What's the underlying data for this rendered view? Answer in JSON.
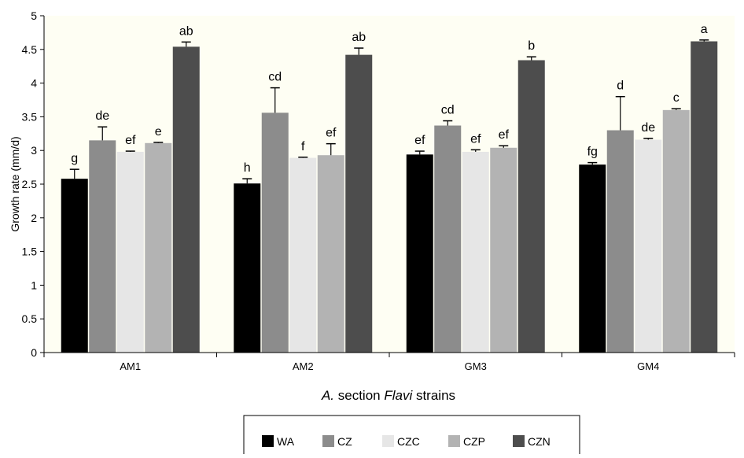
{
  "chart_data": {
    "type": "bar",
    "title": "",
    "ylabel": "Growth rate (mm/d)",
    "xlabel_parts": [
      {
        "text": "A.",
        "italic": true
      },
      {
        "text": " section ",
        "italic": false
      },
      {
        "text": "Flavi",
        "italic": true
      },
      {
        "text": " strains",
        "italic": false
      }
    ],
    "categories": [
      "AM1",
      "AM2",
      "GM3",
      "GM4"
    ],
    "ylim": [
      0,
      5
    ],
    "yticks": [
      0,
      0.5,
      1,
      1.5,
      2,
      2.5,
      3,
      3.5,
      4,
      4.5,
      5
    ],
    "ytick_labels": [
      "0",
      "0.5",
      "1",
      "1.5",
      "2",
      "2.5",
      "3",
      "3.5",
      "4",
      "4.5",
      "5"
    ],
    "grid": false,
    "legend_position": "bottom-center",
    "plot_background": "#fefef3",
    "series": [
      {
        "name": "WA",
        "color": "#000000",
        "values": [
          2.58,
          2.51,
          2.94,
          2.79
        ],
        "errors": [
          0.14,
          0.07,
          0.05,
          0.03
        ],
        "labels": [
          "g",
          "h",
          "ef",
          "fg"
        ]
      },
      {
        "name": "CZ",
        "color": "#8c8c8c",
        "values": [
          3.15,
          3.56,
          3.37,
          3.3
        ],
        "errors": [
          0.2,
          0.37,
          0.07,
          0.5
        ],
        "labels": [
          "de",
          "cd",
          "cd",
          "d"
        ]
      },
      {
        "name": "CZC",
        "color": "#e6e6e6",
        "values": [
          2.98,
          2.89,
          2.98,
          3.16
        ],
        "errors": [
          0.01,
          0.01,
          0.03,
          0.02
        ],
        "labels": [
          "ef",
          "f",
          "ef",
          "de"
        ]
      },
      {
        "name": "CZP",
        "color": "#b3b3b3",
        "values": [
          3.11,
          2.93,
          3.04,
          3.6
        ],
        "errors": [
          0.01,
          0.17,
          0.03,
          0.02
        ],
        "labels": [
          "e",
          "ef",
          "ef",
          "c"
        ]
      },
      {
        "name": "CZN",
        "color": "#4d4d4d",
        "values": [
          4.54,
          4.42,
          4.34,
          4.62
        ],
        "errors": [
          0.07,
          0.1,
          0.05,
          0.02
        ],
        "labels": [
          "ab",
          "ab",
          "b",
          "a"
        ]
      }
    ]
  }
}
